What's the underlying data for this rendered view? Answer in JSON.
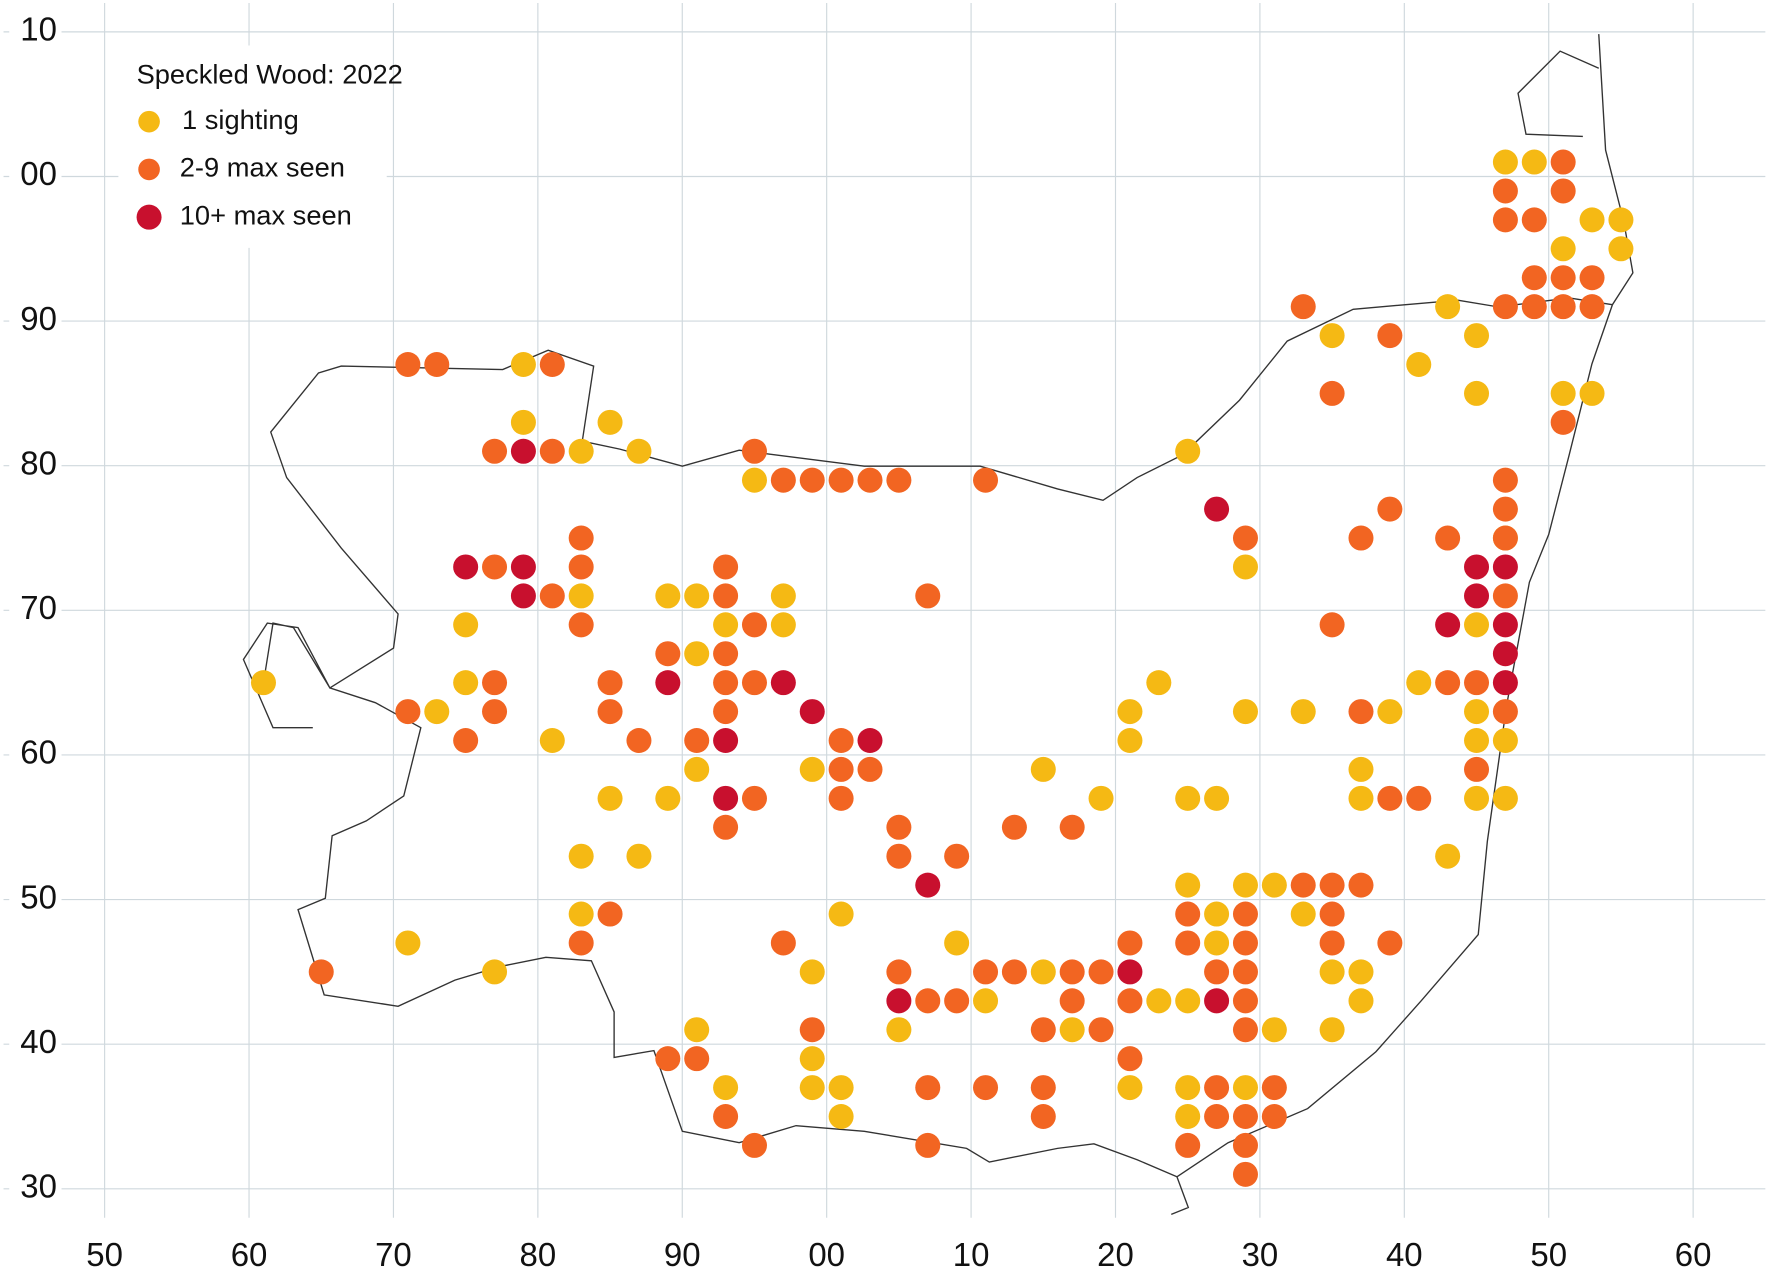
{
  "chart_data": {
    "type": "scatter",
    "title": "Speckled Wood:  2022",
    "legend": "upper left",
    "grid": true,
    "xlim": [
      43,
      165
    ],
    "ylim": [
      28,
      112
    ],
    "xticks": [
      50,
      60,
      70,
      80,
      90,
      {
        "value": 100,
        "label": "00"
      },
      {
        "value": 110,
        "label": "10"
      },
      {
        "value": 120,
        "label": "20"
      },
      {
        "value": 130,
        "label": "30"
      },
      {
        "value": 140,
        "label": "40"
      },
      {
        "value": 150,
        "label": "50"
      },
      {
        "value": 160,
        "label": "60"
      }
    ],
    "yticks": [
      {
        "value": 110,
        "label": "10"
      },
      {
        "value": 100,
        "label": "00"
      },
      90,
      80,
      70,
      60,
      50,
      40,
      30
    ],
    "series": [
      {
        "name": "1 sighting",
        "color": "#f5b914",
        "x": [
          147,
          149,
          153,
          155,
          151,
          155,
          143,
          135,
          145,
          79,
          141,
          145,
          151,
          153,
          79,
          85,
          83,
          87,
          125,
          95,
          147,
          129,
          83,
          89,
          91,
          97,
          145,
          75,
          93,
          97,
          91,
          61,
          75,
          123,
          141,
          73,
          121,
          129,
          133,
          139,
          145,
          81,
          121,
          145,
          147,
          91,
          99,
          115,
          137,
          85,
          89,
          119,
          125,
          127,
          137,
          145,
          147,
          83,
          87,
          143,
          125,
          129,
          131,
          83,
          101,
          127,
          133,
          71,
          109,
          127,
          77,
          99,
          115,
          135,
          137,
          111,
          123,
          125,
          137,
          91,
          105,
          117,
          131,
          135,
          99,
          93,
          99,
          101,
          121,
          125,
          129,
          101,
          125
        ],
        "y": [
          101,
          101,
          97,
          97,
          95,
          95,
          91,
          89,
          89,
          87,
          87,
          85,
          85,
          85,
          83,
          83,
          81,
          81,
          81,
          79,
          75,
          73,
          71,
          71,
          71,
          71,
          69,
          69,
          69,
          69,
          67,
          65,
          65,
          65,
          65,
          63,
          63,
          63,
          63,
          63,
          63,
          61,
          61,
          61,
          61,
          59,
          59,
          59,
          59,
          57,
          57,
          57,
          57,
          57,
          57,
          57,
          57,
          53,
          53,
          53,
          51,
          51,
          51,
          49,
          49,
          49,
          49,
          47,
          47,
          47,
          45,
          45,
          45,
          45,
          45,
          43,
          43,
          43,
          43,
          41,
          41,
          41,
          41,
          41,
          39,
          37,
          37,
          37,
          37,
          37,
          37,
          35,
          35
        ]
      },
      {
        "name": "2-9 max seen",
        "color": "#f26522",
        "x": [
          151,
          147,
          151,
          147,
          149,
          149,
          151,
          153,
          133,
          147,
          149,
          151,
          153,
          139,
          71,
          73,
          81,
          135,
          151,
          77,
          81,
          95,
          97,
          99,
          101,
          103,
          105,
          111,
          147,
          139,
          147,
          83,
          129,
          137,
          143,
          147,
          77,
          83,
          93,
          81,
          93,
          107,
          147,
          83,
          95,
          135,
          89,
          93,
          77,
          85,
          93,
          95,
          143,
          145,
          71,
          77,
          85,
          93,
          137,
          147,
          75,
          87,
          91,
          101,
          101,
          103,
          145,
          95,
          101,
          139,
          141,
          93,
          105,
          113,
          117,
          105,
          109,
          133,
          135,
          137,
          85,
          125,
          129,
          135,
          83,
          97,
          121,
          125,
          129,
          135,
          139,
          65,
          105,
          111,
          113,
          117,
          119,
          127,
          129,
          107,
          109,
          117,
          121,
          129,
          99,
          115,
          119,
          129,
          89,
          91,
          121,
          107,
          111,
          115,
          127,
          131,
          93,
          115,
          127,
          129,
          131,
          95,
          107,
          125,
          129,
          129
        ],
        "y": [
          101,
          99,
          99,
          97,
          97,
          93,
          93,
          93,
          91,
          91,
          91,
          91,
          91,
          89,
          87,
          87,
          87,
          85,
          83,
          81,
          81,
          81,
          79,
          79,
          79,
          79,
          79,
          79,
          79,
          77,
          77,
          75,
          75,
          75,
          75,
          75,
          73,
          73,
          73,
          71,
          71,
          71,
          71,
          69,
          69,
          69,
          67,
          67,
          65,
          65,
          65,
          65,
          65,
          65,
          63,
          63,
          63,
          63,
          63,
          63,
          61,
          61,
          61,
          61,
          59,
          59,
          59,
          57,
          57,
          57,
          57,
          55,
          55,
          55,
          55,
          53,
          53,
          51,
          51,
          51,
          49,
          49,
          49,
          49,
          47,
          47,
          47,
          47,
          47,
          47,
          47,
          45,
          45,
          45,
          45,
          45,
          45,
          45,
          45,
          43,
          43,
          43,
          43,
          43,
          41,
          41,
          41,
          41,
          39,
          39,
          39,
          37,
          37,
          37,
          37,
          37,
          35,
          35,
          35,
          35,
          35,
          33,
          33,
          33,
          33,
          31
        ]
      },
      {
        "name": "10+ max seen",
        "color": "#c8102e",
        "x": [
          79,
          127,
          75,
          79,
          145,
          147,
          79,
          145,
          143,
          147,
          147,
          89,
          97,
          147,
          99,
          93,
          103,
          93,
          107,
          121,
          105,
          127
        ],
        "y": [
          81,
          77,
          73,
          73,
          73,
          73,
          71,
          71,
          69,
          69,
          67,
          65,
          65,
          65,
          63,
          61,
          61,
          57,
          51,
          45,
          43,
          43
        ]
      }
    ]
  }
}
